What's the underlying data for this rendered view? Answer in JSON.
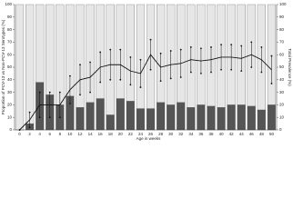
{
  "chart_data": {
    "type": "bar",
    "y_label": "Proportion of PCV-13 vs Non-PCV-13 Serotypes (%)",
    "y2_label": "Total Prevalence (%)",
    "x_label": "Age in weeks",
    "categories": [
      "0",
      "2",
      "4",
      "6",
      "8",
      "10",
      "12",
      "14",
      "16",
      "18",
      "20",
      "22",
      "24",
      "26",
      "28",
      "30",
      "32",
      "34",
      "36",
      "38",
      "40",
      "42",
      "44",
      "46",
      "48",
      "50"
    ],
    "stacked": true,
    "series": [
      {
        "type": "bar",
        "color": "#555555",
        "values": [
          0,
          5,
          38,
          28,
          20,
          27,
          18,
          22,
          25,
          12,
          25,
          23,
          17,
          17,
          22,
          20,
          22,
          18,
          20,
          19,
          18,
          20,
          20,
          19,
          16,
          20
        ]
      },
      {
        "type": "bar",
        "color": "#eeeeee",
        "values": [
          100,
          95,
          62,
          72,
          80,
          73,
          82,
          78,
          75,
          88,
          75,
          77,
          83,
          83,
          78,
          80,
          78,
          82,
          80,
          81,
          82,
          80,
          80,
          81,
          84,
          80
        ]
      },
      {
        "type": "line",
        "axis": "y2",
        "color": "#111111",
        "values": [
          0,
          8,
          20,
          20,
          20,
          32,
          40,
          42,
          50,
          52,
          52,
          47,
          45,
          60,
          50,
          52,
          53,
          56,
          55,
          56,
          58,
          58,
          57,
          60,
          56,
          48
        ],
        "errors": [
          0,
          6,
          10,
          10,
          10,
          11,
          12,
          12,
          12,
          12,
          12,
          11,
          11,
          12,
          11,
          11,
          11,
          10,
          10,
          10,
          10,
          10,
          10,
          10,
          10,
          11
        ]
      }
    ],
    "ylim": [
      0,
      100
    ],
    "yticks": [
      0,
      10,
      20,
      30,
      40,
      50,
      60,
      70,
      80,
      90,
      100
    ],
    "y2lim": [
      0,
      100
    ],
    "y2ticks": [
      0,
      10,
      20,
      30,
      40,
      50,
      60,
      70,
      80,
      90,
      100
    ]
  }
}
